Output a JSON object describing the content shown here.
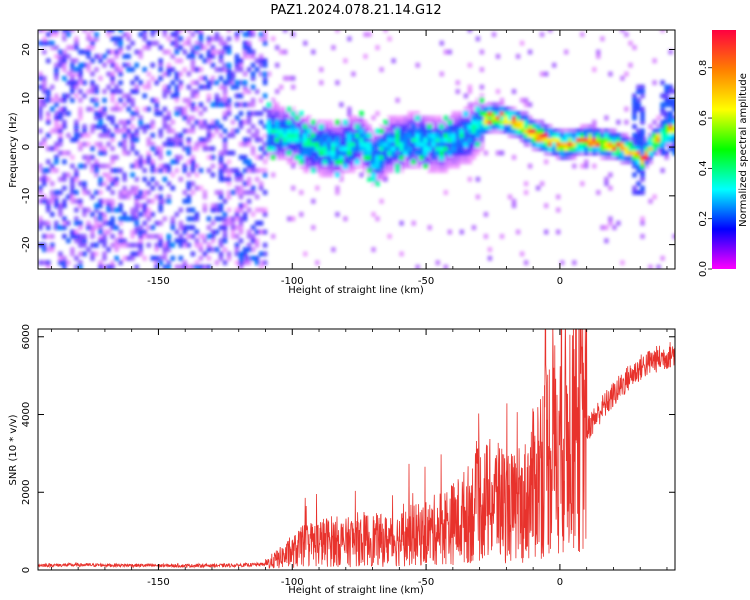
{
  "figure_title": "PAZ1.2024.078.21.14.G12",
  "chart_data": [
    {
      "type": "heatmap",
      "title": "",
      "xlabel": "Height of straight line (km)",
      "ylabel": "Frequency (Hz)",
      "xlim": [
        -195,
        43
      ],
      "ylim": [
        -25,
        24
      ],
      "xticks": [
        -150,
        -100,
        -50,
        0
      ],
      "yticks": [
        -20,
        -10,
        0,
        10,
        20
      ],
      "colorbar": {
        "label": "Normalized spectral amplitude",
        "range": [
          0,
          0.95
        ],
        "ticks": [
          0.0,
          0.2,
          0.4,
          0.6,
          0.8
        ],
        "colormap": "gist_rainbow_r",
        "colors": [
          "#ff00ff",
          "#0000ff",
          "#00ffff",
          "#00ff00",
          "#ffff00",
          "#ff8000",
          "#ff0040"
        ]
      },
      "ridge": {
        "x": [
          -110,
          -100,
          -95,
          -85,
          -75,
          -70,
          -65,
          -55,
          -45,
          -35,
          -30,
          -25,
          -20,
          -15,
          -10,
          0,
          10,
          20,
          25,
          30,
          35,
          40
        ],
        "y": [
          3,
          2,
          0,
          -1,
          1,
          -3,
          0,
          1,
          0,
          2,
          5,
          6,
          5,
          4,
          2,
          0,
          1,
          0,
          -1,
          -3,
          1,
          3
        ]
      }
    },
    {
      "type": "line",
      "title": "",
      "xlabel": "Height of straight line (km)",
      "ylabel": "SNR (10 * v/v)",
      "xlim": [
        -195,
        43
      ],
      "ylim": [
        0,
        6200
      ],
      "xticks": [
        -150,
        -100,
        -50,
        0
      ],
      "yticks": [
        0,
        2000,
        4000,
        6000
      ],
      "line_color": "#e8322c",
      "series": [
        {
          "x": [
            -195,
            -180,
            -160,
            -140,
            -120,
            -110,
            -105,
            -100,
            -95,
            -90,
            -85,
            -80,
            -75,
            -70,
            -65,
            -60,
            -55,
            -50,
            -45,
            -40,
            -35,
            -30,
            -25,
            -20,
            -15,
            -10,
            -5,
            0,
            5,
            10,
            15,
            20,
            25,
            30,
            35,
            40,
            43
          ],
          "y": [
            120,
            130,
            120,
            110,
            120,
            150,
            300,
            450,
            650,
            700,
            750,
            700,
            800,
            780,
            750,
            800,
            900,
            900,
            1100,
            1200,
            1400,
            1700,
            1800,
            1700,
            1500,
            2200,
            3000,
            3300,
            3800,
            3600,
            4100,
            4500,
            4900,
            5200,
            5400,
            5500,
            5600
          ]
        }
      ]
    }
  ]
}
